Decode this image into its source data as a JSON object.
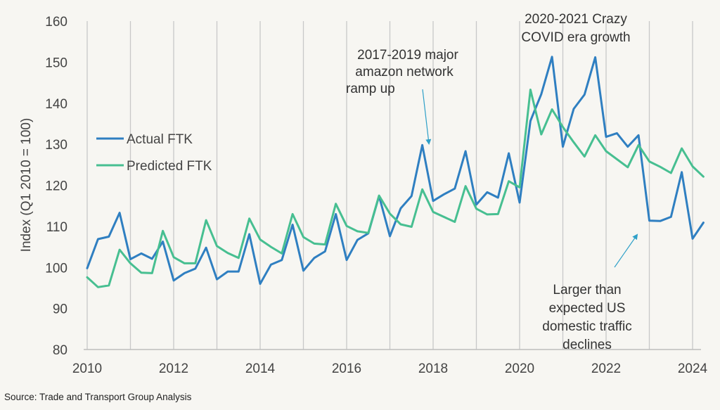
{
  "chart_data": {
    "type": "line",
    "ylabel": "Index (Q1 2010 = 100)",
    "ylim": [
      80,
      160
    ],
    "yticks": [
      80,
      90,
      100,
      110,
      120,
      130,
      140,
      150,
      160
    ],
    "xlim": [
      2010,
      2024.25
    ],
    "xticks": [
      2010,
      2012,
      2014,
      2016,
      2018,
      2020,
      2022,
      2024
    ],
    "x_step": 0.25,
    "grid": "vertical",
    "legend_position": "left-middle",
    "series": [
      {
        "name": "Actual FTK",
        "color": "#2f7fc1",
        "x": [
          2010.0,
          2010.25,
          2010.5,
          2010.75,
          2011.0,
          2011.25,
          2011.5,
          2011.75,
          2012.0,
          2012.25,
          2012.5,
          2012.75,
          2013.0,
          2013.25,
          2013.5,
          2013.75,
          2014.0,
          2014.25,
          2014.5,
          2014.75,
          2015.0,
          2015.25,
          2015.5,
          2015.75,
          2016.0,
          2016.25,
          2016.5,
          2016.75,
          2017.0,
          2017.25,
          2017.5,
          2017.75,
          2018.0,
          2018.25,
          2018.5,
          2018.75,
          2019.0,
          2019.25,
          2019.5,
          2019.75,
          2020.0,
          2020.25,
          2020.5,
          2020.75,
          2021.0,
          2021.25,
          2021.5,
          2021.75,
          2022.0,
          2022.25,
          2022.5,
          2022.75,
          2023.0,
          2023.25,
          2023.5,
          2023.75,
          2024.0,
          2024.25
        ],
        "values": [
          99.8,
          106.9,
          107.5,
          113.3,
          102.0,
          103.4,
          102.1,
          106.3,
          96.8,
          98.6,
          99.7,
          104.8,
          97.1,
          99.0,
          99.0,
          108.1,
          96.0,
          100.7,
          101.8,
          110.4,
          99.2,
          102.3,
          103.9,
          113.0,
          101.8,
          106.7,
          108.3,
          117.4,
          107.6,
          114.4,
          117.4,
          129.8,
          116.2,
          117.8,
          119.2,
          128.3,
          115.3,
          118.3,
          117.0,
          127.8,
          115.8,
          135.7,
          142.2,
          151.3,
          129.4,
          138.6,
          142.1,
          151.2,
          131.8,
          132.7,
          129.4,
          132.2,
          111.4,
          111.3,
          112.3,
          123.2,
          107.0,
          110.9
        ]
      },
      {
        "name": "Predicted FTK",
        "color": "#47bf91",
        "x": [
          2010.0,
          2010.25,
          2010.5,
          2010.75,
          2011.0,
          2011.25,
          2011.5,
          2011.75,
          2012.0,
          2012.25,
          2012.5,
          2012.75,
          2013.0,
          2013.25,
          2013.5,
          2013.75,
          2014.0,
          2014.25,
          2014.5,
          2014.75,
          2015.0,
          2015.25,
          2015.5,
          2015.75,
          2016.0,
          2016.25,
          2016.5,
          2016.75,
          2017.0,
          2017.25,
          2017.5,
          2017.75,
          2018.0,
          2018.5,
          2018.75,
          2019.0,
          2019.25,
          2019.5,
          2019.75,
          2020.0,
          2020.25,
          2020.5,
          2020.75,
          2021.0,
          2021.25,
          2021.5,
          2021.75,
          2022.0,
          2022.5,
          2022.75,
          2023.0,
          2023.25,
          2023.5,
          2023.75,
          2024.0,
          2024.25
        ],
        "values": [
          97.6,
          95.2,
          95.6,
          104.3,
          101.0,
          98.7,
          98.6,
          108.9,
          102.5,
          101.0,
          101.0,
          111.5,
          105.2,
          103.5,
          102.3,
          111.9,
          106.8,
          105.0,
          103.4,
          113.0,
          107.4,
          105.8,
          105.6,
          115.5,
          110.1,
          108.8,
          108.4,
          117.5,
          113.1,
          110.5,
          109.9,
          119.0,
          113.5,
          111.1,
          119.8,
          114.3,
          112.9,
          113.0,
          121.0,
          119.5,
          143.3,
          132.4,
          138.5,
          134.2,
          130.5,
          127.0,
          132.2,
          128.3,
          124.4,
          129.8,
          125.8,
          124.5,
          123.0,
          129.0,
          124.6,
          122.1
        ]
      }
    ],
    "annotations": [
      {
        "lines": [
          "2017-2019 major",
          "amazon network",
          "ramp up"
        ]
      },
      {
        "lines": [
          "2020-2021  Crazy",
          "COVID era growth"
        ]
      },
      {
        "lines": [
          "Larger than",
          "expected  US",
          "domestic traffic",
          "declines"
        ]
      }
    ]
  },
  "source": "Source: Trade and Transport Group Analysis"
}
